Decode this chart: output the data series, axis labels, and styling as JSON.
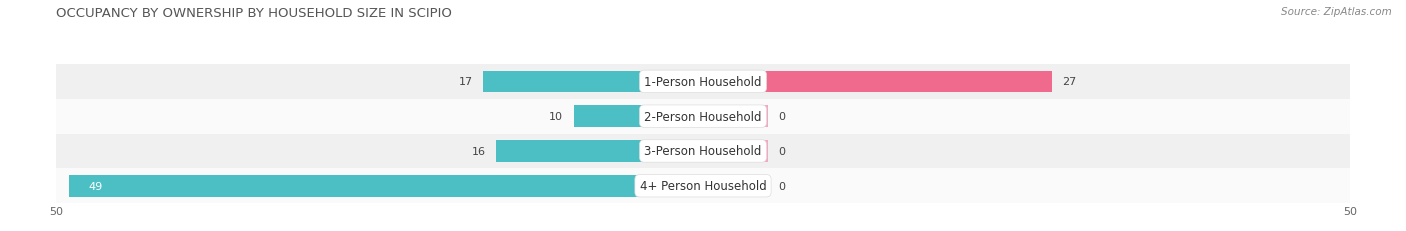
{
  "title": "OCCUPANCY BY OWNERSHIP BY HOUSEHOLD SIZE IN SCIPIO",
  "source": "Source: ZipAtlas.com",
  "categories": [
    "1-Person Household",
    "2-Person Household",
    "3-Person Household",
    "4+ Person Household"
  ],
  "owner_values": [
    17,
    10,
    16,
    49
  ],
  "renter_values": [
    27,
    0,
    0,
    0
  ],
  "renter_stub_values": [
    27,
    5,
    5,
    5
  ],
  "owner_color": "#4bbfc4",
  "renter_color_dark": "#f06a8e",
  "renter_color_light": "#f4a8c0",
  "bar_bg_color": "#e8e8e8",
  "row_bg_even": "#f0f0f0",
  "row_bg_odd": "#fafafa",
  "x_max": 50,
  "x_min": -50,
  "label_fontsize": 8.5,
  "title_fontsize": 9.5,
  "source_fontsize": 7.5,
  "tick_fontsize": 8,
  "legend_fontsize": 8,
  "value_fontsize": 8,
  "bar_height": 0.62,
  "figsize": [
    14.06,
    2.32
  ],
  "dpi": 100
}
